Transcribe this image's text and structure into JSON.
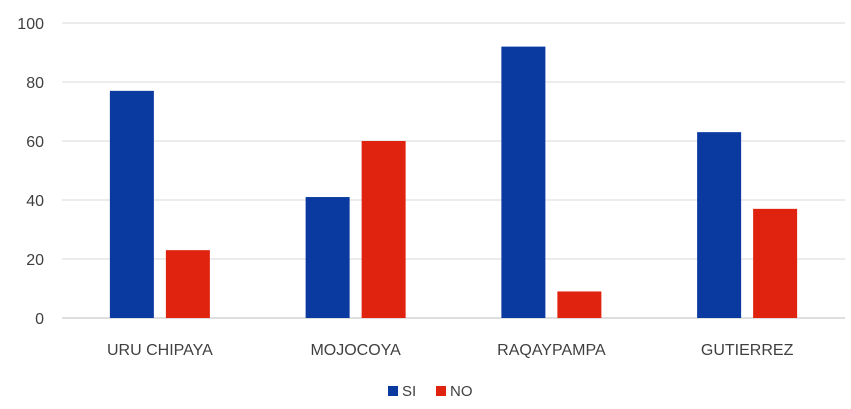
{
  "chart_data": {
    "type": "bar",
    "categories": [
      "URU CHIPAYA",
      "MOJOCOYA",
      "RAQAYPAMPA",
      "GUTIERREZ"
    ],
    "series": [
      {
        "name": "SI",
        "values": [
          77,
          41,
          92,
          63
        ],
        "color": "#0a3aa0"
      },
      {
        "name": "NO",
        "values": [
          23,
          60,
          9,
          37
        ],
        "color": "#e0230f"
      }
    ],
    "ylim": [
      0,
      100
    ],
    "yticks": [
      0,
      20,
      40,
      60,
      80,
      100
    ],
    "grid": true,
    "legend": "bottom-center"
  }
}
